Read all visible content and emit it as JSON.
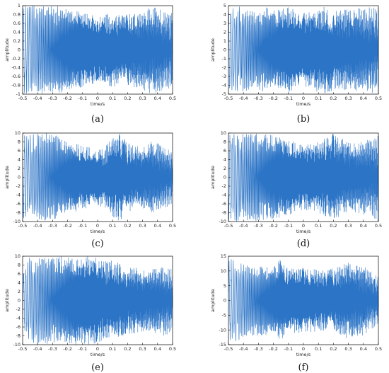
{
  "chart_data": [
    {
      "id": "a",
      "caption": "(a)",
      "type": "line",
      "xlabel": "time/s",
      "ylabel": "amplitude",
      "xlim": [
        -0.5,
        0.5
      ],
      "ylim": [
        -1,
        1
      ],
      "xticks": [
        "-0.5",
        "-0.4",
        "-0.3",
        "-0.2",
        "-0.1",
        "0",
        "0.1",
        "0.2",
        "0.3",
        "0.4",
        "0.5"
      ],
      "yticks": [
        "-1",
        "-0.8",
        "-0.6",
        "-0.4",
        "-0.2",
        "0",
        "0.2",
        "0.4",
        "0.6",
        "0.8",
        "1"
      ],
      "series": [
        {
          "color": "#1565c0",
          "x": [
            -0.5,
            -0.45,
            -0.4,
            -0.35,
            -0.3,
            -0.25,
            -0.2,
            -0.15,
            -0.1,
            -0.05,
            0,
            0.05,
            0.1,
            0.15,
            0.2,
            0.25,
            0.3,
            0.35,
            0.4,
            0.45,
            0.5
          ],
          "envelope": [
            1,
            1,
            1,
            1,
            1,
            1,
            0.95,
            0.9,
            0.85,
            0.8,
            0.75,
            0.8,
            0.85,
            0.8,
            0.8,
            0.85,
            0.9,
            1,
            0.95,
            0.9,
            0.9
          ]
        }
      ]
    },
    {
      "id": "b",
      "caption": "(b)",
      "type": "line",
      "xlabel": "time/s",
      "ylabel": "amplitude",
      "xlim": [
        -0.5,
        0.5
      ],
      "ylim": [
        -5,
        5
      ],
      "xticks": [
        "-0.5",
        "-0.4",
        "-0.3",
        "-0.2",
        "-0.1",
        "0",
        "0.1",
        "0.2",
        "0.3",
        "0.4",
        "0.5"
      ],
      "yticks": [
        "-5",
        "-4",
        "-3",
        "-2",
        "-1",
        "0",
        "1",
        "2",
        "3",
        "4",
        "5"
      ],
      "series": [
        {
          "color": "#1565c0",
          "x": [
            -0.5,
            -0.45,
            -0.4,
            -0.35,
            -0.3,
            -0.25,
            -0.2,
            -0.15,
            -0.1,
            -0.05,
            0,
            0.05,
            0.1,
            0.15,
            0.2,
            0.25,
            0.3,
            0.35,
            0.4,
            0.45,
            0.5
          ],
          "envelope": [
            4.5,
            5,
            4.8,
            4.5,
            4.6,
            4.8,
            4.5,
            4.6,
            5,
            4.4,
            4.2,
            4.4,
            4.8,
            5,
            4.6,
            4.5,
            4.7,
            4.8,
            4.6,
            4.9,
            4.8
          ]
        }
      ]
    },
    {
      "id": "c",
      "caption": "(c)",
      "type": "line",
      "xlabel": "time/s",
      "ylabel": "amplitude",
      "xlim": [
        -0.5,
        0.5
      ],
      "ylim": [
        -10,
        10
      ],
      "xticks": [
        "-0.5",
        "-0.4",
        "-0.3",
        "-0.2",
        "-0.1",
        "0",
        "0.1",
        "0.2",
        "0.3",
        "0.4",
        "0.5"
      ],
      "yticks": [
        "-10",
        "-8",
        "-6",
        "-4",
        "-2",
        "0",
        "2",
        "4",
        "6",
        "8",
        "10"
      ],
      "series": [
        {
          "color": "#1565c0",
          "x": [
            -0.5,
            -0.45,
            -0.4,
            -0.35,
            -0.3,
            -0.25,
            -0.2,
            -0.15,
            -0.1,
            -0.05,
            0,
            0.05,
            0.1,
            0.15,
            0.2,
            0.25,
            0.3,
            0.35,
            0.4,
            0.45,
            0.5
          ],
          "envelope": [
            10,
            10,
            10,
            10,
            10,
            9,
            8,
            8,
            7,
            7,
            6.5,
            7,
            9,
            10,
            8,
            7,
            7,
            8,
            8,
            7,
            6
          ]
        }
      ]
    },
    {
      "id": "d",
      "caption": "(d)",
      "type": "line",
      "xlabel": "time/s",
      "ylabel": "amplitude",
      "xlim": [
        -0.5,
        0.5
      ],
      "ylim": [
        -10,
        10
      ],
      "xticks": [
        "-0.5",
        "-0.4",
        "-0.3",
        "-0.2",
        "-0.1",
        "0",
        "0.1",
        "0.2",
        "0.3",
        "0.4",
        "0.5"
      ],
      "yticks": [
        "-10",
        "-8",
        "-6",
        "-4",
        "-2",
        "0",
        "2",
        "4",
        "6",
        "8",
        "10"
      ],
      "series": [
        {
          "color": "#1565c0",
          "x": [
            -0.5,
            -0.45,
            -0.4,
            -0.35,
            -0.3,
            -0.25,
            -0.2,
            -0.15,
            -0.1,
            -0.05,
            0,
            0.05,
            0.1,
            0.15,
            0.2,
            0.25,
            0.3,
            0.35,
            0.4,
            0.45,
            0.5
          ],
          "envelope": [
            10,
            10,
            10,
            10,
            10,
            10,
            9.5,
            9,
            8.5,
            8,
            7.5,
            7.5,
            8,
            9,
            10,
            9,
            8,
            8,
            8.5,
            9,
            10
          ]
        }
      ]
    },
    {
      "id": "e",
      "caption": "(e)",
      "type": "line",
      "xlabel": "time/s",
      "ylabel": "amplitude",
      "xlim": [
        -0.5,
        0.5
      ],
      "ylim": [
        -10,
        10
      ],
      "xticks": [
        "-0.5",
        "-0.4",
        "-0.3",
        "-0.2",
        "-0.1",
        "0",
        "0.1",
        "0.2",
        "0.3",
        "0.4",
        "0.5"
      ],
      "yticks": [
        "-10",
        "-8",
        "-6",
        "-4",
        "-2",
        "0",
        "2",
        "4",
        "6",
        "8",
        "10"
      ],
      "series": [
        {
          "color": "#1565c0",
          "x": [
            -0.5,
            -0.45,
            -0.4,
            -0.35,
            -0.3,
            -0.25,
            -0.2,
            -0.15,
            -0.1,
            -0.05,
            0,
            0.05,
            0.1,
            0.15,
            0.2,
            0.25,
            0.3,
            0.35,
            0.4,
            0.45,
            0.5
          ],
          "envelope": [
            6,
            10,
            10,
            10,
            10,
            10,
            10,
            10,
            10,
            10,
            9.5,
            9,
            9,
            8.5,
            8,
            7.5,
            7,
            7,
            7.5,
            8,
            7
          ]
        }
      ]
    },
    {
      "id": "f",
      "caption": "(f)",
      "type": "line",
      "xlabel": "time/s",
      "ylabel": "amplitude",
      "xlim": [
        -0.5,
        0.5
      ],
      "ylim": [
        -15,
        15
      ],
      "xticks": [
        "-0.5",
        "-0.4",
        "-0.3",
        "-0.2",
        "-0.1",
        "0",
        "0.1",
        "0.2",
        "0.3",
        "0.4",
        "0.5"
      ],
      "yticks": [
        "-15",
        "-10",
        "-5",
        "0",
        "5",
        "10",
        "15"
      ],
      "series": [
        {
          "color": "#1565c0",
          "x": [
            -0.5,
            -0.45,
            -0.4,
            -0.35,
            -0.3,
            -0.25,
            -0.2,
            -0.15,
            -0.1,
            -0.05,
            0,
            0.05,
            0.1,
            0.15,
            0.2,
            0.25,
            0.3,
            0.35,
            0.4,
            0.45,
            0.5
          ],
          "envelope": [
            14,
            14,
            13,
            12,
            12,
            12,
            12,
            14,
            11,
            11,
            11,
            11,
            10.5,
            10.5,
            11,
            12,
            13,
            12,
            12,
            10,
            8
          ]
        }
      ]
    }
  ]
}
